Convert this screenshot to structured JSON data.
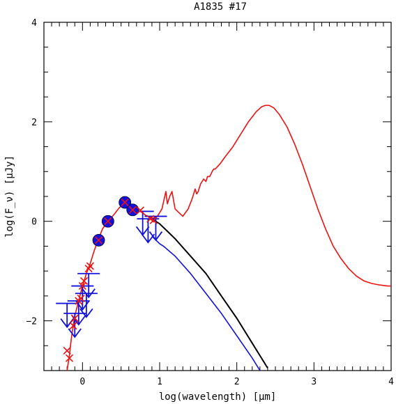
{
  "chart_data": {
    "type": "line",
    "title": "A1835 #17",
    "xlabel": "log(wavelength) [μm]",
    "ylabel": "log(F_ν) [μJy]",
    "xlim": [
      -0.5,
      4
    ],
    "ylim": [
      -3,
      4
    ],
    "xticks": [
      0,
      1,
      2,
      3,
      4
    ],
    "yticks": [
      -2,
      0,
      2,
      4
    ],
    "grid": false,
    "legend": "none",
    "colors": {
      "red": "#ee1111",
      "black": "#000000",
      "blue": "#1111dd"
    },
    "series": [
      {
        "color": "red",
        "x": [
          -0.2,
          -0.17,
          -0.14,
          -0.1,
          -0.05,
          0.0,
          0.05,
          0.1,
          0.15,
          0.2,
          0.26,
          0.33,
          0.4,
          0.48,
          0.55,
          0.62,
          0.68,
          0.75,
          0.82,
          0.9,
          0.97,
          1.03,
          1.08,
          1.1,
          1.13,
          1.16,
          1.2,
          1.3,
          1.37,
          1.42,
          1.46,
          1.48,
          1.5,
          1.53,
          1.57,
          1.6,
          1.62,
          1.65,
          1.68,
          1.7,
          1.72,
          1.78,
          1.85,
          1.95,
          2.05,
          2.15,
          2.25,
          2.32,
          2.37,
          2.42,
          2.48,
          2.55,
          2.65,
          2.75,
          2.85,
          2.95,
          3.05,
          3.15,
          3.25,
          3.35,
          3.45,
          3.55,
          3.65,
          3.75,
          3.85,
          3.95,
          4.0
        ],
        "y": [
          -3.0,
          -2.7,
          -2.3,
          -1.9,
          -1.6,
          -1.3,
          -1.05,
          -0.85,
          -0.6,
          -0.38,
          -0.15,
          0.0,
          0.12,
          0.28,
          0.35,
          0.3,
          0.22,
          0.2,
          0.12,
          0.05,
          0.1,
          0.25,
          0.6,
          0.35,
          0.5,
          0.6,
          0.25,
          0.1,
          0.25,
          0.45,
          0.65,
          0.55,
          0.6,
          0.75,
          0.85,
          0.8,
          0.9,
          0.9,
          1.0,
          1.05,
          1.05,
          1.15,
          1.3,
          1.5,
          1.75,
          2.0,
          2.2,
          2.3,
          2.33,
          2.33,
          2.28,
          2.15,
          1.9,
          1.55,
          1.15,
          0.7,
          0.25,
          -0.15,
          -0.5,
          -0.75,
          -0.95,
          -1.1,
          -1.2,
          -1.25,
          -1.28,
          -1.3,
          -1.3
        ]
      },
      {
        "color": "black",
        "x": [
          0.9,
          1.0,
          1.1,
          1.2,
          1.4,
          1.6,
          1.8,
          2.0,
          2.2,
          2.4
        ],
        "y": [
          0.05,
          -0.05,
          -0.2,
          -0.35,
          -0.7,
          -1.05,
          -1.5,
          -1.95,
          -2.45,
          -2.95
        ]
      },
      {
        "color": "blue",
        "x": [
          0.9,
          1.0,
          1.05,
          1.2,
          1.4,
          1.6,
          1.8,
          2.0,
          2.2,
          2.3
        ],
        "y": [
          -0.3,
          -0.45,
          -0.5,
          -0.7,
          -1.05,
          -1.45,
          -1.85,
          -2.3,
          -2.75,
          -3.0
        ]
      }
    ],
    "detections": [
      {
        "x": 0.21,
        "y": -0.38
      },
      {
        "x": 0.33,
        "y": 0.0
      },
      {
        "x": 0.55,
        "y": 0.38
      },
      {
        "x": 0.65,
        "y": 0.23
      }
    ],
    "model_photometry": [
      {
        "x": -0.2,
        "y": -2.6
      },
      {
        "x": -0.17,
        "y": -2.75
      },
      {
        "x": -0.12,
        "y": -2.1
      },
      {
        "x": -0.1,
        "y": -1.95
      },
      {
        "x": -0.05,
        "y": -1.6
      },
      {
        "x": -0.02,
        "y": -1.55
      },
      {
        "x": 0.0,
        "y": -1.3
      },
      {
        "x": 0.02,
        "y": -1.2
      },
      {
        "x": 0.08,
        "y": -0.95
      },
      {
        "x": 0.1,
        "y": -0.9
      },
      {
        "x": 0.21,
        "y": -0.38
      },
      {
        "x": 0.33,
        "y": 0.0
      },
      {
        "x": 0.55,
        "y": 0.38
      },
      {
        "x": 0.65,
        "y": 0.23
      },
      {
        "x": 0.75,
        "y": 0.22
      },
      {
        "x": 0.88,
        "y": 0.05
      },
      {
        "x": 0.92,
        "y": 0.02
      }
    ],
    "upper_limits": [
      {
        "x": -0.2,
        "y": -1.65
      },
      {
        "x": -0.1,
        "y": -1.85
      },
      {
        "x": -0.05,
        "y": -1.6
      },
      {
        "x": 0.0,
        "y": -1.3
      },
      {
        "x": 0.05,
        "y": -1.45
      },
      {
        "x": 0.08,
        "y": -1.05
      },
      {
        "x": 0.78,
        "y": 0.2
      },
      {
        "x": 0.85,
        "y": 0.05
      },
      {
        "x": 0.95,
        "y": 0.1
      }
    ]
  }
}
